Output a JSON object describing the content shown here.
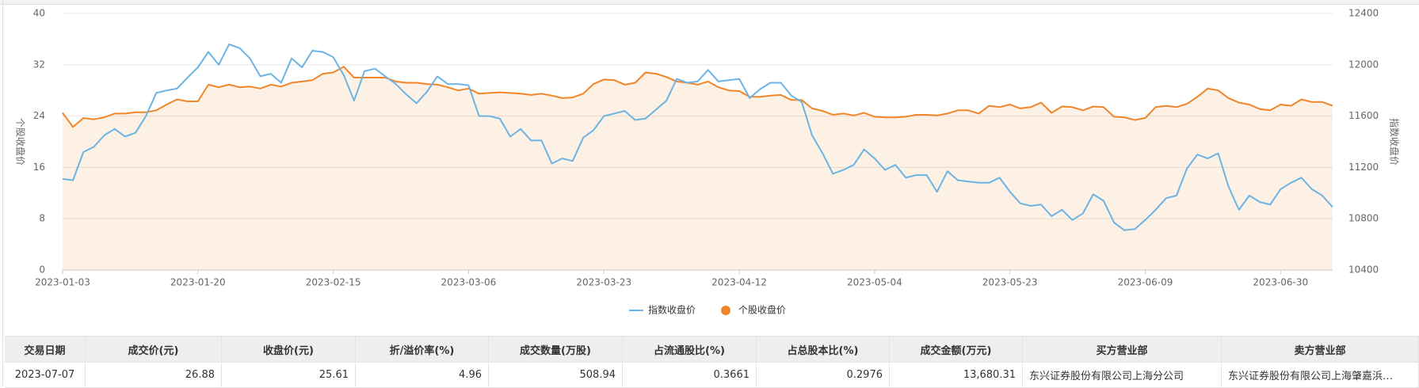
{
  "chart_data": {
    "type": "line",
    "ylabel": "个股收盘价",
    "y2label": "指数收盘价",
    "categories": [
      "2023-01-03",
      null,
      null,
      null,
      null,
      null,
      null,
      null,
      null,
      null,
      null,
      null,
      null,
      "2023-01-20",
      null,
      null,
      null,
      null,
      null,
      null,
      null,
      null,
      null,
      null,
      null,
      null,
      "2023-02-15",
      null,
      null,
      null,
      null,
      null,
      null,
      null,
      null,
      null,
      null,
      null,
      null,
      "2023-03-06",
      null,
      null,
      null,
      null,
      null,
      null,
      null,
      null,
      null,
      null,
      null,
      null,
      "2023-03-23",
      null,
      null,
      null,
      null,
      null,
      null,
      null,
      null,
      null,
      null,
      null,
      null,
      "2023-04-12",
      null,
      null,
      null,
      null,
      null,
      null,
      null,
      null,
      null,
      null,
      null,
      null,
      "2023-05-04",
      null,
      null,
      null,
      null,
      null,
      null,
      null,
      null,
      null,
      null,
      null,
      null,
      "2023-05-23",
      null,
      null,
      null,
      null,
      null,
      null,
      null,
      null,
      null,
      null,
      null,
      null,
      "2023-06-09",
      null,
      null,
      null,
      null,
      null,
      null,
      null,
      null,
      null,
      null,
      null,
      null,
      "2023-06-30",
      null,
      null,
      null,
      null,
      null
    ],
    "series": [
      {
        "name": "指数收盘价",
        "color": "#6cb4e4",
        "axis": "y2",
        "values": [
          11110,
          11100,
          11320,
          11360,
          11450,
          11500,
          11440,
          11470,
          11600,
          11780,
          11800,
          11815,
          11900,
          11980,
          12100,
          12000,
          12160,
          12130,
          12050,
          11910,
          11930,
          11860,
          12050,
          11980,
          12110,
          12100,
          12060,
          11920,
          11720,
          11950,
          11970,
          11910,
          11850,
          11770,
          11700,
          11790,
          11910,
          11850,
          11850,
          11840,
          11600,
          11600,
          11580,
          11440,
          11500,
          11410,
          11410,
          11230,
          11270,
          11250,
          11430,
          11490,
          11600,
          11620,
          11640,
          11570,
          11580,
          11650,
          11720,
          11890,
          11860,
          11870,
          11960,
          11870,
          11880,
          11890,
          11740,
          11810,
          11860,
          11860,
          11760,
          11710,
          11450,
          11310,
          11150,
          11180,
          11220,
          11340,
          11270,
          11180,
          11220,
          11120,
          11140,
          11140,
          11010,
          11170,
          11100,
          11090,
          11080,
          11080,
          11120,
          11010,
          10920,
          10900,
          10910,
          10820,
          10870,
          10790,
          10840,
          10990,
          10940,
          10770,
          10710,
          10720,
          10790,
          10870,
          10960,
          10980,
          11190,
          11300,
          11270,
          11310,
          11050,
          10870,
          10980,
          10930,
          10910,
          11030,
          11080,
          11120,
          11030,
          10980,
          10890
        ]
      },
      {
        "name": "个股收盘价",
        "color": "#f0862a",
        "area": true,
        "values": [
          24.5,
          22.3,
          23.7,
          23.5,
          23.8,
          24.4,
          24.4,
          24.6,
          24.6,
          24.9,
          25.8,
          26.6,
          26.3,
          26.3,
          28.9,
          28.5,
          28.9,
          28.5,
          28.6,
          28.3,
          28.9,
          28.6,
          29.2,
          29.4,
          29.6,
          30.6,
          30.8,
          31.7,
          30.0,
          30.0,
          30.0,
          30.0,
          29.4,
          29.2,
          29.2,
          29.0,
          28.9,
          28.5,
          28.0,
          28.3,
          27.5,
          27.6,
          27.7,
          27.6,
          27.5,
          27.3,
          27.5,
          27.2,
          26.8,
          26.9,
          27.5,
          29.0,
          29.7,
          29.6,
          28.9,
          29.2,
          30.8,
          30.6,
          30.1,
          29.4,
          29.2,
          28.9,
          29.4,
          28.5,
          28.0,
          27.9,
          27.0,
          27.0,
          27.2,
          27.3,
          26.5,
          26.5,
          25.2,
          24.8,
          24.2,
          24.4,
          24.1,
          24.5,
          23.9,
          23.8,
          23.8,
          23.9,
          24.2,
          24.2,
          24.1,
          24.4,
          24.9,
          24.9,
          24.4,
          25.6,
          25.4,
          25.8,
          25.2,
          25.4,
          26.1,
          24.5,
          25.5,
          25.4,
          24.9,
          25.5,
          25.4,
          23.9,
          23.8,
          23.4,
          23.7,
          25.4,
          25.6,
          25.4,
          25.9,
          27.0,
          28.3,
          28.0,
          26.8,
          26.1,
          25.8,
          25.1,
          24.9,
          25.8,
          25.6,
          26.6,
          26.2,
          26.2,
          25.61
        ]
      }
    ],
    "ylim": [
      0,
      40
    ],
    "yticks": [
      0,
      8,
      16,
      24,
      32,
      40
    ],
    "y2lim": [
      10400,
      12400
    ],
    "y2ticks": [
      10400,
      10800,
      11200,
      11600,
      12000,
      12400
    ],
    "grid": true,
    "legend": "bottom"
  },
  "table": {
    "header": [
      "交易日期",
      "成交价(元)",
      "收盘价(元)",
      "折/溢价率(%)",
      "成交数量(万股)",
      "占流通股比(%)",
      "占总股本比(%)",
      "成交金额(万元)",
      "买方营业部",
      "卖方营业部"
    ],
    "rows": [
      [
        "2023-07-07",
        "26.88",
        "25.61",
        "4.96",
        "508.94",
        "0.3661",
        "0.2976",
        "13,680.31",
        "东兴证券股份有限公司上海分公司",
        "东兴证券股份有限公司上海肇嘉浜…"
      ]
    ]
  }
}
